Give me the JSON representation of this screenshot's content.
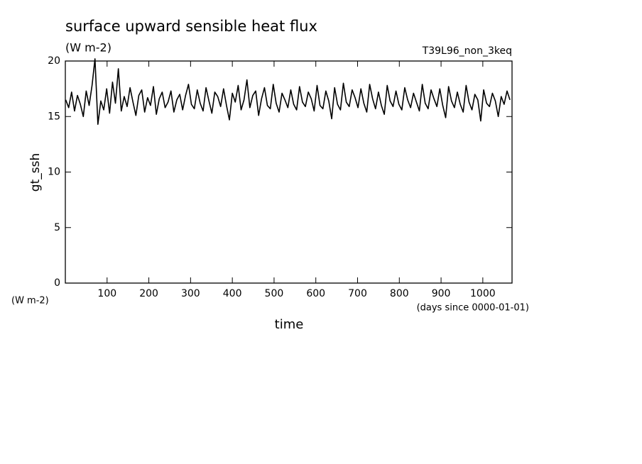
{
  "chart_data": {
    "type": "line",
    "title": "surface upward sensible heat flux",
    "subtitle": "(W m-2)",
    "annotation": "T39L96_non_3keq",
    "y_label": "gt_ssh",
    "y_units": "(W m-2)",
    "x_units": "(days since 0000-01-01)",
    "x_label": "time",
    "xlim": [
      0,
      1070
    ],
    "ylim": [
      0,
      20
    ],
    "xticks": [
      100,
      200,
      300,
      400,
      500,
      600,
      700,
      800,
      900,
      1000
    ],
    "yticks": [
      0,
      5,
      10,
      15,
      20
    ],
    "color": "#000000",
    "x": [
      1,
      8,
      15,
      22,
      29,
      36,
      43,
      50,
      57,
      64,
      71,
      78,
      85,
      92,
      99,
      106,
      113,
      120,
      127,
      134,
      141,
      148,
      155,
      162,
      169,
      176,
      183,
      190,
      197,
      204,
      211,
      218,
      225,
      232,
      239,
      246,
      253,
      260,
      267,
      274,
      281,
      288,
      295,
      302,
      309,
      316,
      323,
      330,
      337,
      344,
      351,
      358,
      365,
      372,
      379,
      386,
      393,
      400,
      407,
      414,
      421,
      428,
      435,
      442,
      449,
      456,
      463,
      470,
      477,
      484,
      491,
      498,
      505,
      512,
      519,
      526,
      533,
      540,
      547,
      554,
      561,
      568,
      575,
      582,
      589,
      596,
      603,
      610,
      617,
      624,
      631,
      638,
      645,
      652,
      659,
      666,
      673,
      680,
      687,
      694,
      701,
      708,
      715,
      722,
      729,
      736,
      743,
      750,
      757,
      764,
      771,
      778,
      785,
      792,
      799,
      806,
      813,
      820,
      827,
      834,
      841,
      848,
      855,
      862,
      869,
      876,
      883,
      890,
      897,
      904,
      911,
      918,
      925,
      932,
      939,
      946,
      953,
      960,
      967,
      974,
      981,
      988,
      995,
      1002,
      1009,
      1016,
      1023,
      1030,
      1037,
      1044,
      1051,
      1058,
      1065
    ],
    "values": [
      16.5,
      15.8,
      17.2,
      15.5,
      16.9,
      16.1,
      15.0,
      17.3,
      16.0,
      17.8,
      20.2,
      14.3,
      16.4,
      15.6,
      17.5,
      15.3,
      18.1,
      16.2,
      19.3,
      15.5,
      16.8,
      15.9,
      17.6,
      16.3,
      15.1,
      16.9,
      17.4,
      15.4,
      16.7,
      16.0,
      17.7,
      15.2,
      16.6,
      17.2,
      15.8,
      16.3,
      17.3,
      15.4,
      16.5,
      17.0,
      15.6,
      16.9,
      17.9,
      16.1,
      15.7,
      17.4,
      16.2,
      15.5,
      17.6,
      16.4,
      15.3,
      17.2,
      16.8,
      15.9,
      17.5,
      16.0,
      14.7,
      17.1,
      16.3,
      17.8,
      15.6,
      16.5,
      18.3,
      15.8,
      16.9,
      17.3,
      15.1,
      16.6,
      17.6,
      16.0,
      15.7,
      17.9,
      16.2,
      15.4,
      17.1,
      16.5,
      15.8,
      17.4,
      16.1,
      15.6,
      17.7,
      16.3,
      15.9,
      17.2,
      16.6,
      15.5,
      17.8,
      16.0,
      15.7,
      17.3,
      16.4,
      14.8,
      17.6,
      16.1,
      15.6,
      18.0,
      16.3,
      15.9,
      17.4,
      16.7,
      15.8,
      17.5,
      16.2,
      15.4,
      17.9,
      16.6,
      15.7,
      17.2,
      16.0,
      15.2,
      17.8,
      16.4,
      15.9,
      17.3,
      16.1,
      15.6,
      17.6,
      16.5,
      15.8,
      17.1,
      16.3,
      15.5,
      17.9,
      16.2,
      15.7,
      17.4,
      16.6,
      15.9,
      17.5,
      16.0,
      14.9,
      17.7,
      16.4,
      15.8,
      17.2,
      16.1,
      15.4,
      17.8,
      16.3,
      15.6,
      17.0,
      16.5,
      14.6,
      17.4,
      16.2,
      15.9,
      17.1,
      16.4,
      15.0,
      16.8,
      16.1,
      17.3,
      16.5
    ]
  }
}
